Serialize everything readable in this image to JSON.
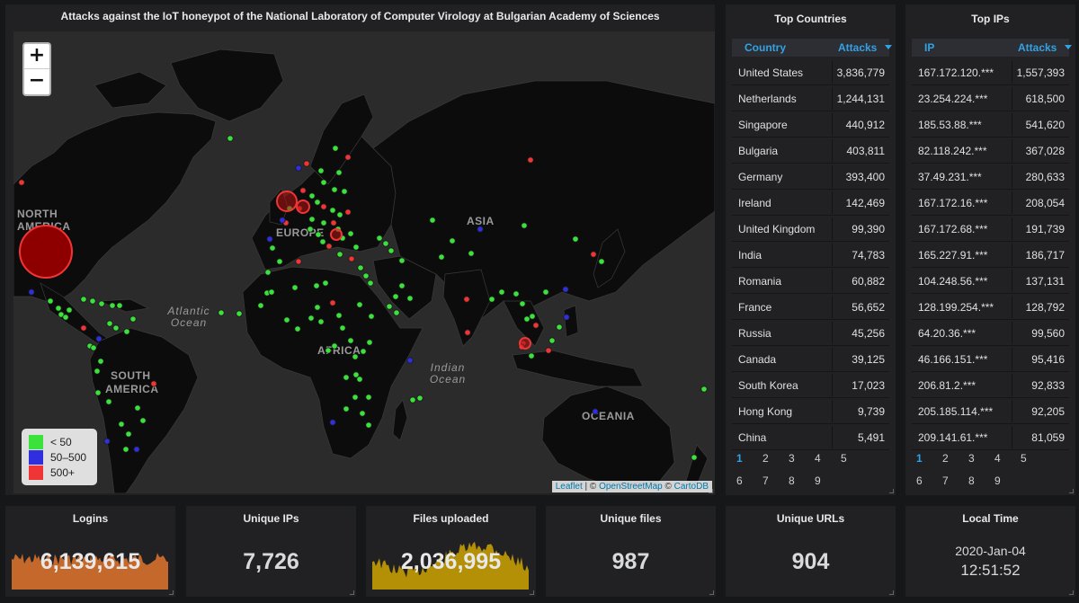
{
  "map": {
    "title": "Attacks against the IoT honeypot of the National Laboratory of Computer Virology at Bulgarian Academy of Sciences",
    "zoom_in": "+",
    "zoom_out": "−",
    "labels": {
      "north_america_1": "NORTH",
      "north_america_2": "AMERICA",
      "south_america_1": "SOUTH",
      "south_america_2": "AMERICA",
      "europe": "EUROPE",
      "asia": "ASIA",
      "africa": "AFRICA",
      "oceania": "OCEANIA",
      "atlantic_1": "Atlantic",
      "atlantic_2": "Ocean",
      "indian_1": "Indian",
      "indian_2": "Ocean"
    },
    "legend": [
      {
        "label": "< 50",
        "color": "#3be23b"
      },
      {
        "label": "50–500",
        "color": "#2f2fe0"
      },
      {
        "label": "500+",
        "color": "#ef3535"
      }
    ],
    "attribution": {
      "leaflet": "Leaflet",
      "sep1": " | © ",
      "osm": "OpenStreetMap",
      "sep2": " © ",
      "carto": "CartoDB"
    }
  },
  "top_countries": {
    "title": "Top Countries",
    "col1": "Country",
    "col2": "Attacks",
    "sort_icon": "sort-desc-icon",
    "rows": [
      {
        "name": "United States",
        "value": "3,836,779"
      },
      {
        "name": "Netherlands",
        "value": "1,244,131"
      },
      {
        "name": "Singapore",
        "value": "440,912"
      },
      {
        "name": "Bulgaria",
        "value": "403,811"
      },
      {
        "name": "Germany",
        "value": "393,400"
      },
      {
        "name": "Ireland",
        "value": "142,469"
      },
      {
        "name": "United Kingdom",
        "value": "99,390"
      },
      {
        "name": "India",
        "value": "74,783"
      },
      {
        "name": "Romania",
        "value": "60,882"
      },
      {
        "name": "France",
        "value": "56,652"
      },
      {
        "name": "Russia",
        "value": "45,256"
      },
      {
        "name": "Canada",
        "value": "39,125"
      },
      {
        "name": "South Korea",
        "value": "17,023"
      },
      {
        "name": "Hong Kong",
        "value": "9,739"
      },
      {
        "name": "China",
        "value": "5,491"
      }
    ],
    "pages": [
      "1",
      "2",
      "3",
      "4",
      "5",
      "6",
      "7",
      "8",
      "9"
    ]
  },
  "top_ips": {
    "title": "Top IPs",
    "col1": "IP",
    "col2": "Attacks",
    "rows": [
      {
        "name": "167.172.120.***",
        "value": "1,557,393"
      },
      {
        "name": "23.254.224.***",
        "value": "618,500"
      },
      {
        "name": "185.53.88.***",
        "value": "541,620"
      },
      {
        "name": "82.118.242.***",
        "value": "367,028"
      },
      {
        "name": "37.49.231.***",
        "value": "280,633"
      },
      {
        "name": "167.172.16.***",
        "value": "208,054"
      },
      {
        "name": "167.172.68.***",
        "value": "191,739"
      },
      {
        "name": "165.227.91.***",
        "value": "186,717"
      },
      {
        "name": "104.248.56.***",
        "value": "137,131"
      },
      {
        "name": "128.199.254.***",
        "value": "128,792"
      },
      {
        "name": "64.20.36.***",
        "value": "99,560"
      },
      {
        "name": "46.166.151.***",
        "value": "95,416"
      },
      {
        "name": "206.81.2.***",
        "value": "92,833"
      },
      {
        "name": "205.185.114.***",
        "value": "92,205"
      },
      {
        "name": "209.141.61.***",
        "value": "81,059"
      }
    ],
    "pages": [
      "1",
      "2",
      "3",
      "4",
      "5",
      "6",
      "7",
      "8",
      "9"
    ]
  },
  "stats": {
    "logins": {
      "title": "Logins",
      "value": "6,139,615",
      "color": "#e0752d"
    },
    "unique_ips": {
      "title": "Unique IPs",
      "value": "7,726"
    },
    "files_uploaded": {
      "title": "Files uploaded",
      "value": "2,036,995",
      "color": "#cca300"
    },
    "unique_files": {
      "title": "Unique files",
      "value": "987"
    },
    "unique_urls": {
      "title": "Unique URLs",
      "value": "904"
    },
    "local_time": {
      "title": "Local Time",
      "date": "2020-Jan-04",
      "time": "12:51:52"
    }
  }
}
